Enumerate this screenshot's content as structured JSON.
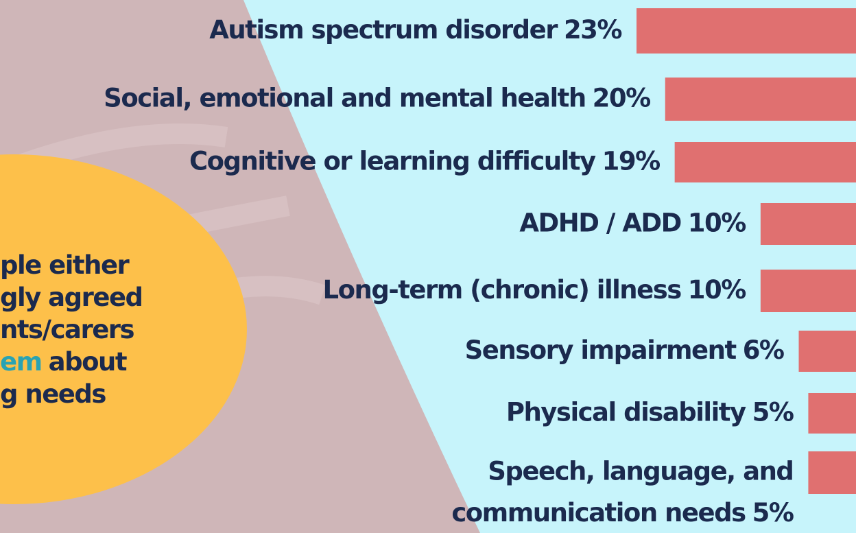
{
  "chart_data": {
    "type": "bar",
    "categories": [
      "Autism spectrum disorder",
      "Social, emotional  and mental health",
      "Cognitive or learning difficulty",
      "ADHD / ADD",
      "Long-term (chronic) illness",
      "Sensory impairment",
      "Physical disability",
      [
        "Speech, language, and",
        "communication needs"
      ]
    ],
    "values": [
      23,
      20,
      19,
      10,
      10,
      6,
      5,
      5
    ],
    "value_labels": [
      "23%",
      "20%",
      "19%",
      "10%",
      "10%",
      "6%",
      "5%",
      "5%"
    ],
    "color": "#e07070",
    "annotation": {
      "lines": [
        [
          "ple either"
        ],
        [
          "gly agreed"
        ],
        [
          "nts/carers"
        ],
        [
          "em",
          "about"
        ],
        [
          "g needs"
        ]
      ],
      "highlight_color": "#2aa3b3"
    }
  }
}
